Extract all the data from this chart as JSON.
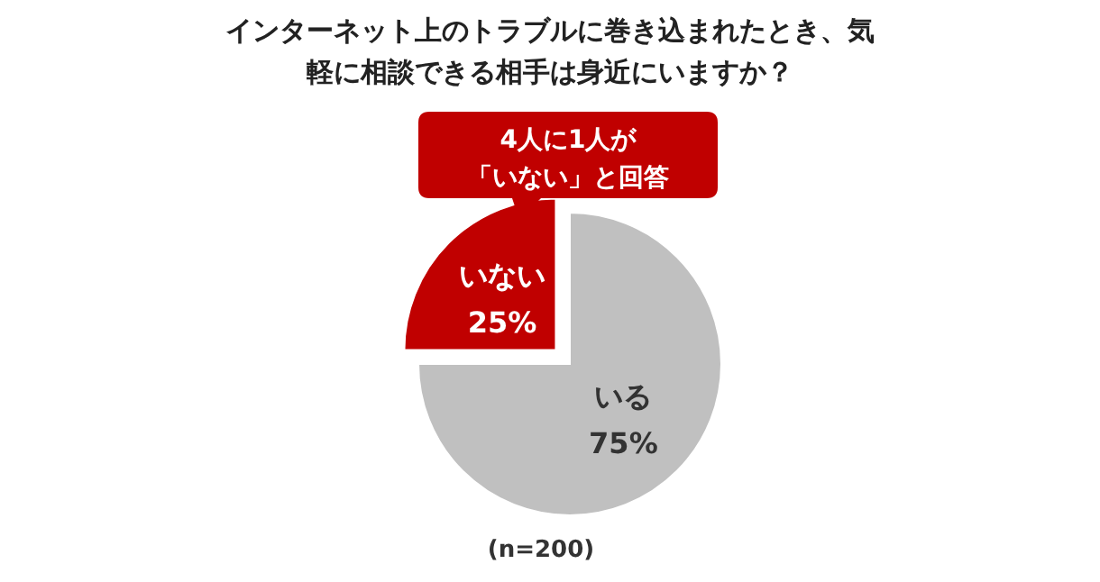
{
  "chart_data": {
    "type": "pie",
    "title": "インターネット上のトラブルに巻き込まれたとき、気軽に相談できる相手は身近にいますか？",
    "categories": [
      "いる",
      "いない"
    ],
    "values": [
      75,
      25
    ],
    "value_labels": [
      "75%",
      "25%"
    ],
    "colors": [
      "#c0c0c0",
      "#c00000"
    ],
    "annotations": [
      "4人に1人が",
      "「いない」と回答",
      "(n=200)"
    ]
  }
}
